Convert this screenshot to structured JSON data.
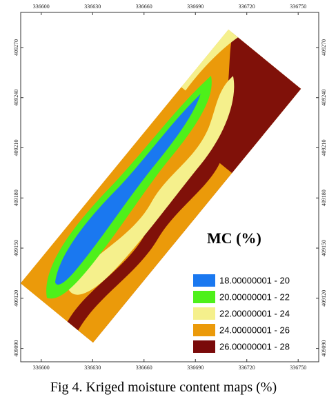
{
  "map": {
    "xlim": [
      336588,
      336762
    ],
    "ylim": [
      409082,
      409291
    ],
    "xticks": [
      336600,
      336630,
      336660,
      336690,
      336720,
      336750
    ],
    "yticks": [
      409270,
      409240,
      409210,
      409180,
      409150,
      409120,
      409090
    ]
  },
  "legend": {
    "title": "MC (%)",
    "items": [
      {
        "label": "18.00000001 - 20",
        "color": "#1a78f0"
      },
      {
        "label": "20.00000001 - 22",
        "color": "#4ef01a"
      },
      {
        "label": "22.00000001 - 24",
        "color": "#f5f08c"
      },
      {
        "label": "24.00000001 - 26",
        "color": "#eb9a0a"
      },
      {
        "label": "26.00000001 - 28",
        "color": "#7a0a0a"
      }
    ]
  },
  "caption": "Fig 4. Kriged moisture content maps (%)"
}
